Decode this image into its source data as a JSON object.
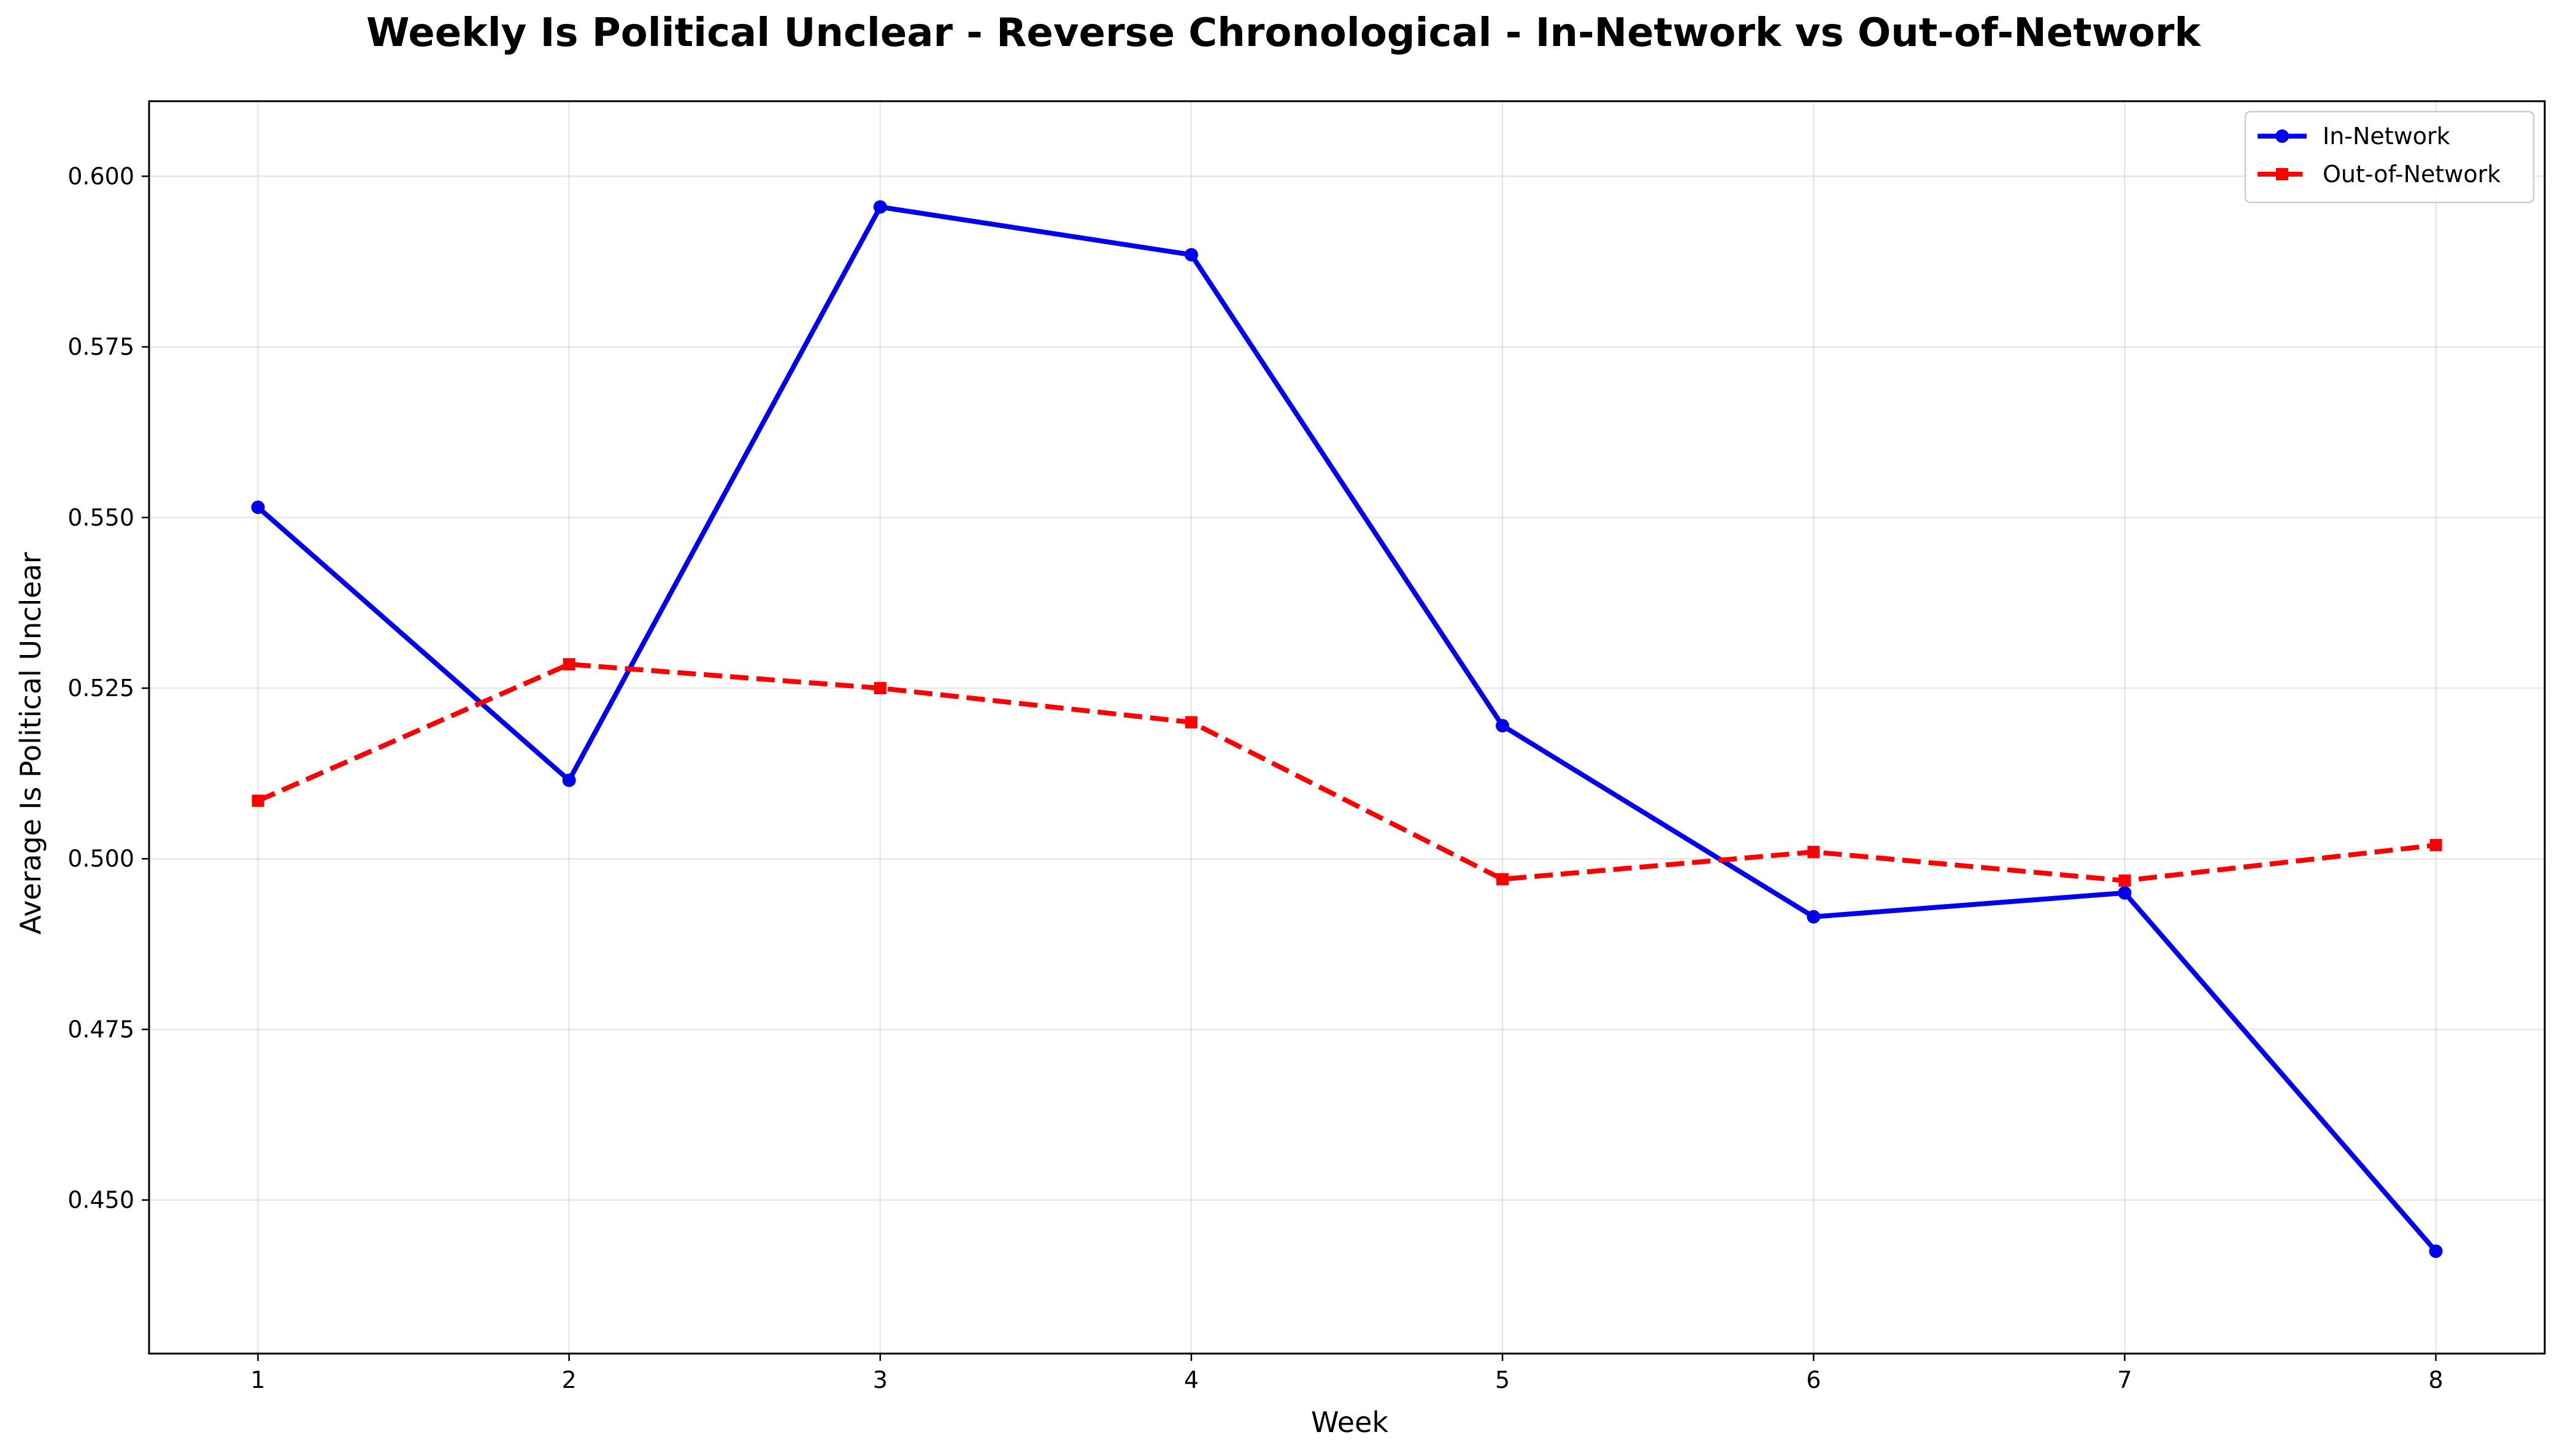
{
  "chart_data": {
    "type": "line",
    "title": "Weekly Is Political Unclear - Reverse Chronological - In-Network vs Out-of-Network",
    "xlabel": "Week",
    "ylabel": "Average Is Political Unclear",
    "x": [
      1,
      2,
      3,
      4,
      5,
      6,
      7,
      8
    ],
    "x_tick_labels": [
      "1",
      "2",
      "3",
      "4",
      "5",
      "6",
      "7",
      "8"
    ],
    "xlim": [
      0.65,
      8.35
    ],
    "ylim": [
      0.4275,
      0.611
    ],
    "y_ticks": [
      0.45,
      0.475,
      0.5,
      0.525,
      0.55,
      0.575,
      0.6
    ],
    "y_tick_labels": [
      "0.450",
      "0.475",
      "0.500",
      "0.525",
      "0.550",
      "0.575",
      "0.600"
    ],
    "grid": true,
    "legend_position": "top-right",
    "series": [
      {
        "name": "In-Network",
        "color": "#0000ee",
        "line_style": "solid",
        "marker": "circle",
        "values": [
          0.5515,
          0.5115,
          0.5955,
          0.5885,
          0.5195,
          0.4915,
          0.495,
          0.4425
        ]
      },
      {
        "name": "Out-of-Network",
        "color": "#ff0000",
        "line_style": "dashed",
        "marker": "square",
        "values": [
          0.5085,
          0.5285,
          0.525,
          0.52,
          0.497,
          0.501,
          0.4968,
          0.502
        ]
      }
    ]
  }
}
